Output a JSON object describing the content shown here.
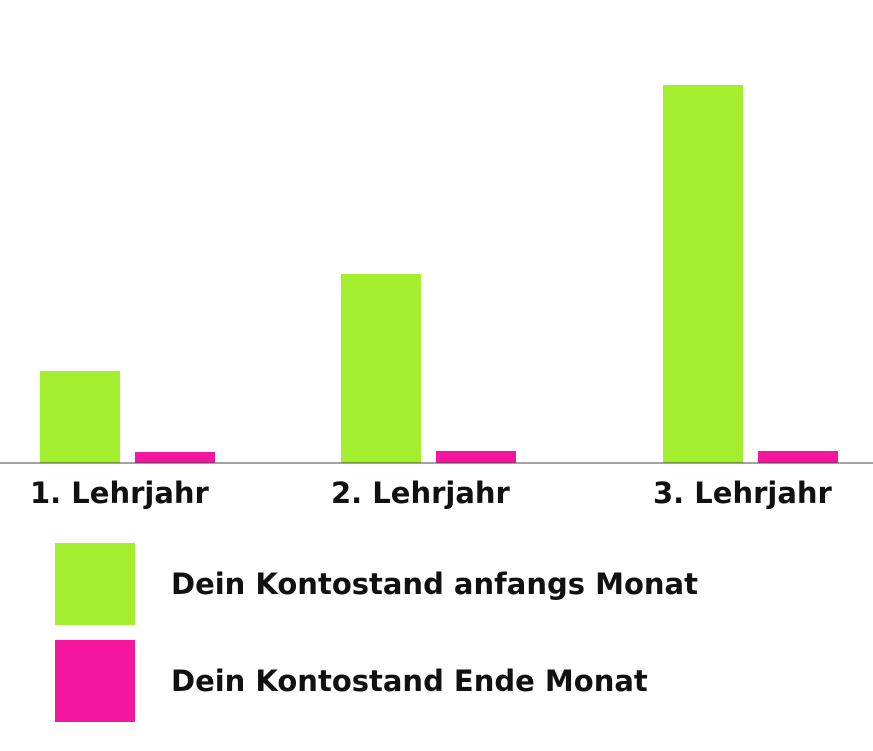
{
  "chart_data": {
    "type": "bar",
    "title": "",
    "xlabel": "",
    "ylabel": "",
    "categories": [
      "1. Lehrjahr",
      "2. Lehrjahr",
      "3. Lehrjahr"
    ],
    "series": [
      {
        "name": "Dein Kontostand anfangs Monat",
        "color": "#a3ef2f",
        "values": [
          92,
          189,
          378
        ]
      },
      {
        "name": "Dein Kontostand Ende Monat",
        "color": "#f516a0",
        "values": [
          11,
          12,
          12
        ]
      }
    ],
    "ylim": [
      0,
      400
    ],
    "grid": false,
    "legend_position": "bottom-left"
  }
}
